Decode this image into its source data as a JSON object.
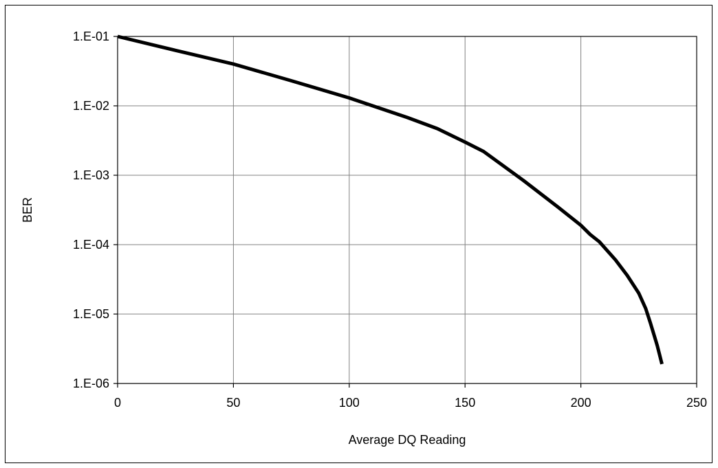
{
  "chart_data": {
    "type": "line",
    "title": "",
    "xlabel": "Average DQ Reading",
    "ylabel": "BER",
    "xlim": [
      0,
      250
    ],
    "ylim": [
      1e-06,
      0.1
    ],
    "yscale": "log",
    "grid": true,
    "legend": "none",
    "x_ticks": [
      0,
      50,
      100,
      150,
      200,
      250
    ],
    "x_tick_labels": [
      "0",
      "50",
      "100",
      "150",
      "200",
      "250"
    ],
    "y_ticks": [
      0.1,
      0.01,
      0.001,
      0.0001,
      1e-05,
      1e-06
    ],
    "y_tick_labels": [
      "1.E-01",
      "1.E-02",
      "1.E-03",
      "1.E-04",
      "1.E-05",
      "1.E-06"
    ],
    "series": [
      {
        "color": "#000000",
        "x": [
          0,
          25,
          50,
          75,
          100,
          125,
          138,
          150,
          158,
          175,
          190,
          200,
          204,
          208,
          215,
          220,
          225,
          228,
          230,
          232,
          233,
          235
        ],
        "y": [
          0.1,
          0.063,
          0.04,
          0.023,
          0.013,
          0.0068,
          0.0047,
          0.003,
          0.0022,
          0.00085,
          0.00035,
          0.00019,
          0.00014,
          0.00011,
          6e-05,
          3.6e-05,
          2e-05,
          1.2e-05,
          7.5e-06,
          4.5e-06,
          3.5e-06,
          1.9e-06
        ]
      }
    ]
  }
}
